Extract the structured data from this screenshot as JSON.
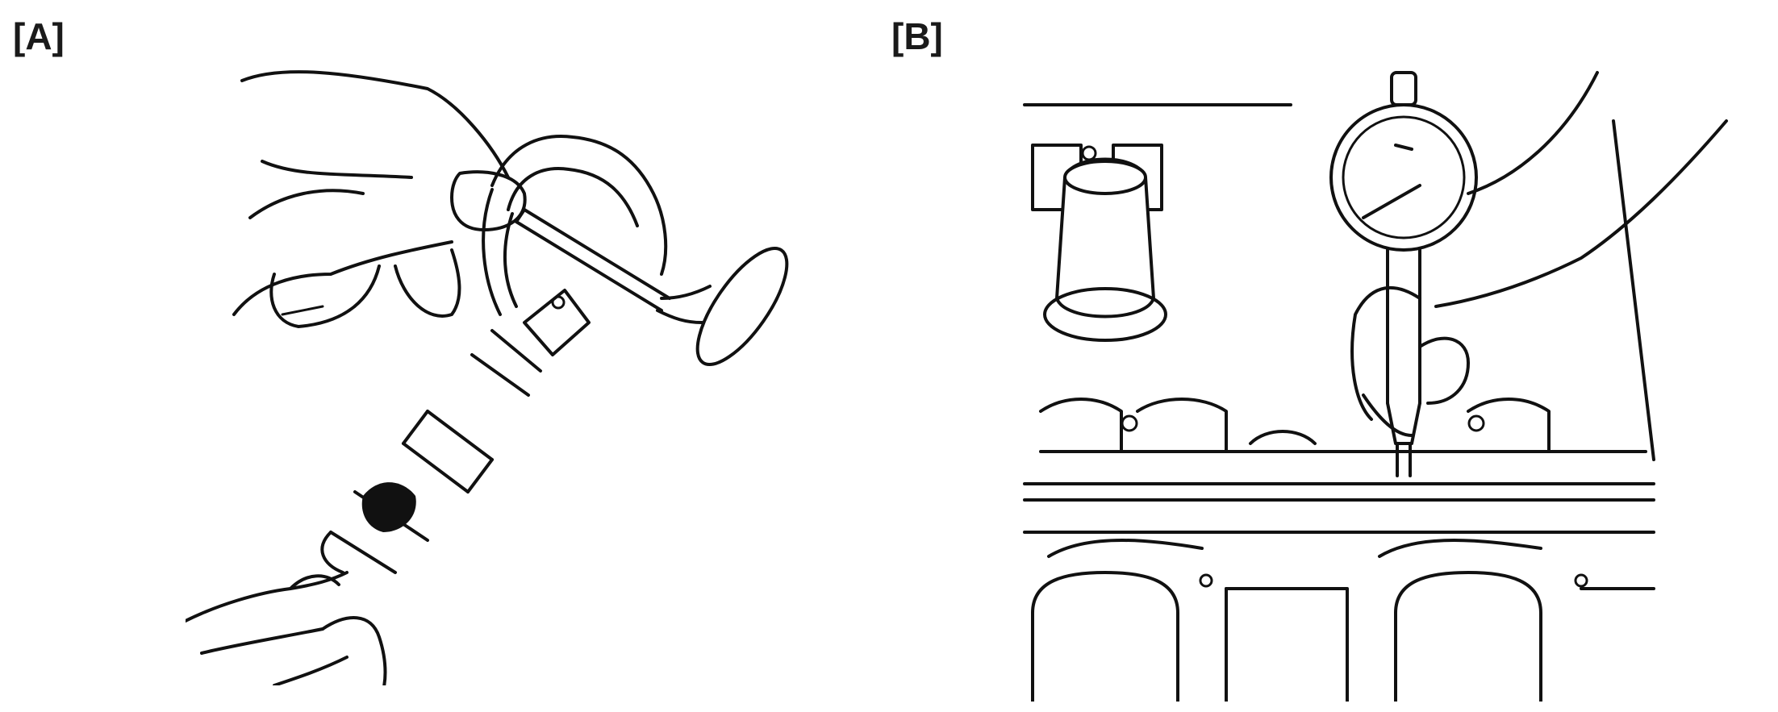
{
  "panels": [
    {
      "label": "[A]",
      "illustration": "micrometer-measuring-valve-stem"
    },
    {
      "label": "[B]",
      "illustration": "dial-bore-gauge-measuring-valve-guide"
    }
  ],
  "colors": {
    "ink": "#111111",
    "background": "#ffffff"
  }
}
